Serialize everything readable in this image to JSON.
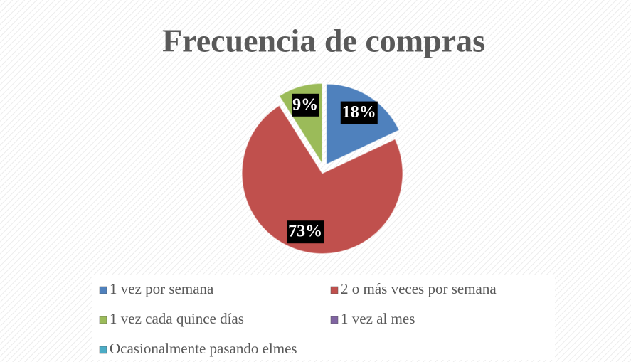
{
  "chart_data": {
    "type": "pie",
    "title": "Frecuencia de compras",
    "categories": [
      "1 vez por semana",
      "2 o más veces por semana",
      "1 vez cada quince días",
      "1 vez al mes",
      "Ocasionalmente pasando elmes"
    ],
    "values": [
      18,
      73,
      9,
      0,
      0
    ],
    "value_labels": [
      "18%",
      "73%",
      "9%",
      null,
      null
    ],
    "colors": [
      "#4f81bd",
      "#c0504d",
      "#9bbb59",
      "#8064a2",
      "#4bacc6"
    ]
  }
}
